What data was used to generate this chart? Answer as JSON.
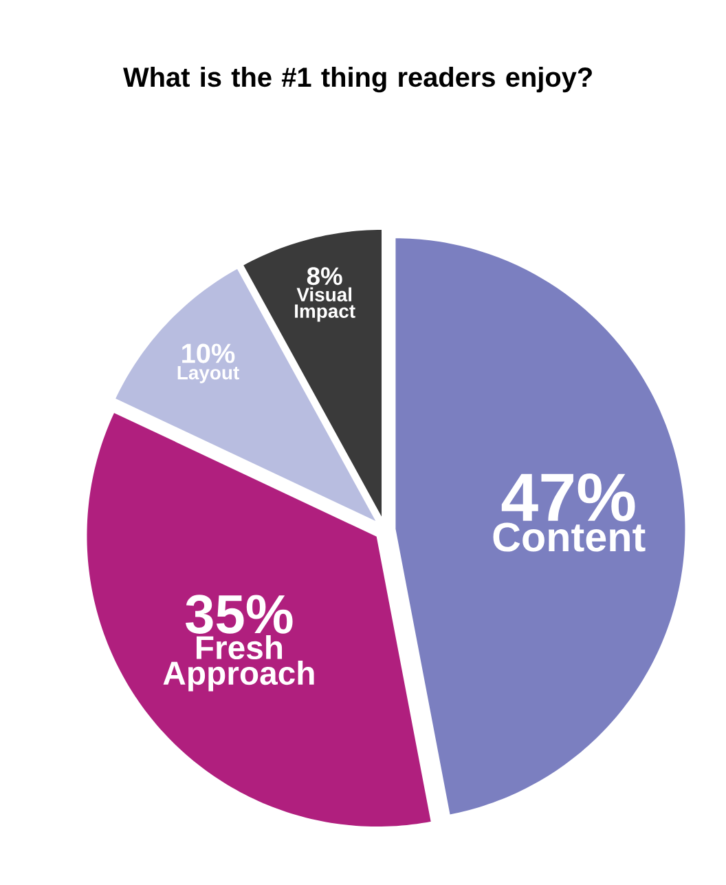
{
  "chart_data": {
    "type": "pie",
    "title": "What is the #1 thing readers enjoy?",
    "categories": [
      "Content",
      "Fresh Approach",
      "Layout",
      "Visual Impact"
    ],
    "values": [
      47,
      35,
      10,
      8
    ],
    "value_labels": [
      "47%",
      "35%",
      "10%",
      "8%"
    ],
    "colors": [
      "#7b7fc0",
      "#b01f7e",
      "#b8bde0",
      "#3a3a3a"
    ]
  }
}
